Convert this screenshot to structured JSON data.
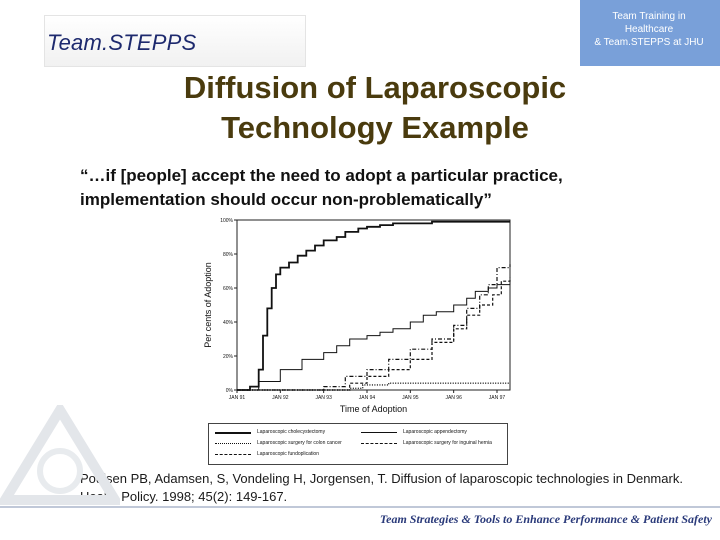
{
  "header": {
    "brand": "Team.STEPPS",
    "corner_lines": [
      "Team Training in",
      "Healthcare",
      "& Team.STEPPS at JHU"
    ]
  },
  "title_lines": [
    "Diffusion of Laparoscopic",
    "Technology Example"
  ],
  "quote": "“…if [people] accept the need to adopt a particular practice, implementation should occur non-problematically”",
  "citation": "Poulsen PB, Adamsen, S, Vondeling H, Jorgensen, T. Diffusion of laparoscopic technologies in Denmark. Health Policy. 1998; 45(2): 149-167.",
  "footer": "Team Strategies & Tools to Enhance Performance & Patient Safety",
  "chart_data": {
    "type": "line",
    "xlabel": "Time of Adoption",
    "ylabel": "Per cents of Adoption",
    "x_ticks": [
      "JAN 91",
      "JAN 92",
      "JAN 93",
      "JAN 94",
      "JAN 95",
      "JAN 96",
      "JAN 97"
    ],
    "y_ticks": [
      "0%",
      "20%",
      "40%",
      "60%",
      "80%",
      "100%"
    ],
    "xlim": [
      1991,
      1997.3
    ],
    "ylim": [
      0,
      100
    ],
    "grid": false,
    "legend_position": "bottom",
    "series": [
      {
        "name": "Laparoscopic cholecystectomy",
        "style": "solid-thick",
        "x": [
          1991.0,
          1991.3,
          1991.5,
          1991.6,
          1991.7,
          1991.8,
          1991.9,
          1992.0,
          1992.2,
          1992.4,
          1992.6,
          1992.8,
          1993.0,
          1993.3,
          1993.5,
          1993.8,
          1994.0,
          1994.3,
          1994.6,
          1995.0,
          1995.5,
          1996.0,
          1996.5,
          1997.0,
          1997.3
        ],
        "y": [
          0,
          2,
          12,
          32,
          48,
          60,
          68,
          72,
          75,
          79,
          82,
          85,
          88,
          90,
          93,
          95,
          96,
          97,
          98,
          98,
          99,
          99,
          99,
          99,
          99
        ]
      },
      {
        "name": "Laparoscopic appendectomy",
        "style": "solid-thin",
        "x": [
          1991.0,
          1991.5,
          1992.0,
          1992.5,
          1993.0,
          1993.3,
          1993.6,
          1994.0,
          1994.3,
          1994.6,
          1995.0,
          1995.3,
          1995.6,
          1996.0,
          1996.3,
          1996.5,
          1996.8,
          1997.0,
          1997.3
        ],
        "y": [
          0,
          5,
          12,
          18,
          22,
          26,
          30,
          32,
          34,
          36,
          40,
          44,
          46,
          50,
          54,
          58,
          60,
          62,
          64
        ]
      },
      {
        "name": "Laparoscopic surgery for colon cancer",
        "style": "dotted",
        "x": [
          1991.0,
          1992.0,
          1993.0,
          1993.6,
          1993.9,
          1994.5,
          1995.0,
          1996.0,
          1997.0,
          1997.3
        ],
        "y": [
          0,
          0,
          0,
          1,
          3,
          4,
          4,
          4,
          4,
          4
        ]
      },
      {
        "name": "Laparoscopic surgery for inguinal hernia",
        "style": "dash-dot",
        "x": [
          1991.0,
          1992.5,
          1993.0,
          1993.5,
          1994.0,
          1994.5,
          1995.0,
          1995.5,
          1996.0,
          1996.3,
          1996.6,
          1996.8,
          1997.0,
          1997.3
        ],
        "y": [
          0,
          0,
          2,
          8,
          12,
          18,
          24,
          30,
          38,
          48,
          56,
          62,
          72,
          74
        ]
      },
      {
        "name": "Laparoscopic fundoplication",
        "style": "dashed",
        "x": [
          1991.0,
          1993.0,
          1993.6,
          1994.0,
          1994.5,
          1995.0,
          1995.5,
          1996.0,
          1996.3,
          1996.6,
          1996.9,
          1997.1,
          1997.3
        ],
        "y": [
          0,
          0,
          4,
          8,
          12,
          18,
          28,
          36,
          44,
          50,
          56,
          64,
          66
        ]
      }
    ]
  }
}
